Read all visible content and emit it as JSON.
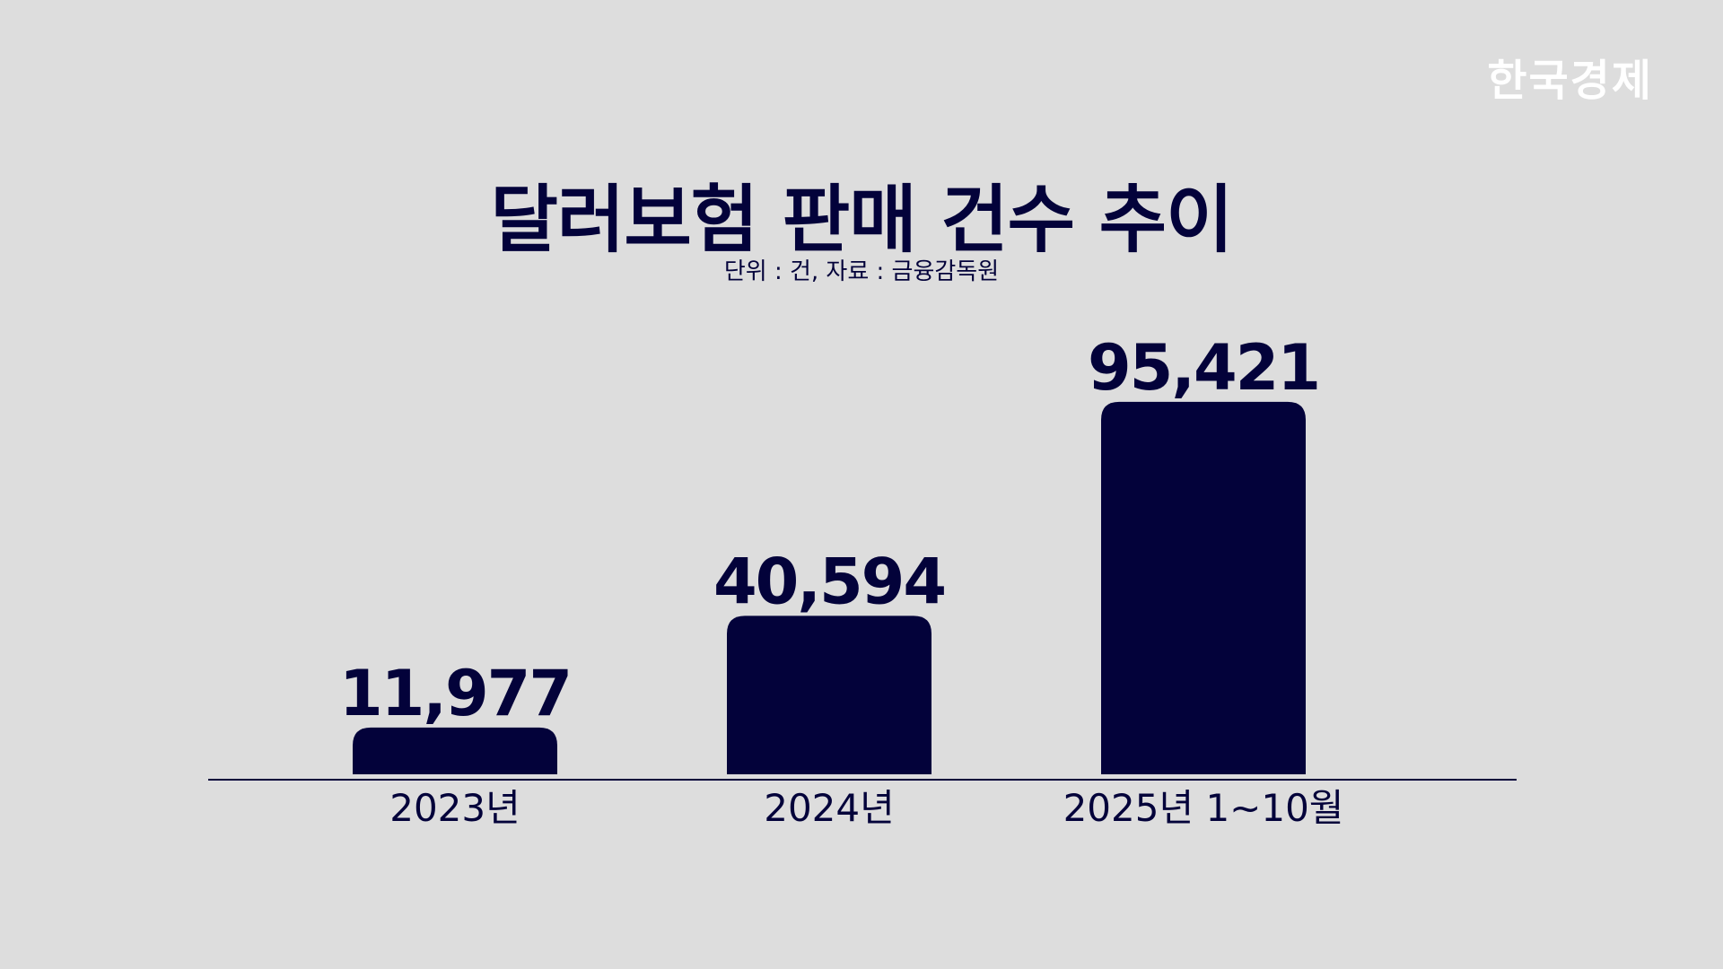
{
  "brand": {
    "logo_text": "한국경제"
  },
  "chart_data": {
    "type": "bar",
    "title": "달러보험 판매 건수 추이",
    "subtitle": "단위 : 건, 자료 : 금융감독원",
    "categories": [
      "2023년",
      "2024년",
      "2025년 1~10월"
    ],
    "values": [
      11977,
      40594,
      95421
    ],
    "value_labels": [
      "11,977",
      "40,594",
      "95,421"
    ],
    "ylim": [
      0,
      100000
    ],
    "grid": false,
    "legend": "none",
    "bar_color": "#03023a",
    "baseline_color": "#03023a"
  }
}
